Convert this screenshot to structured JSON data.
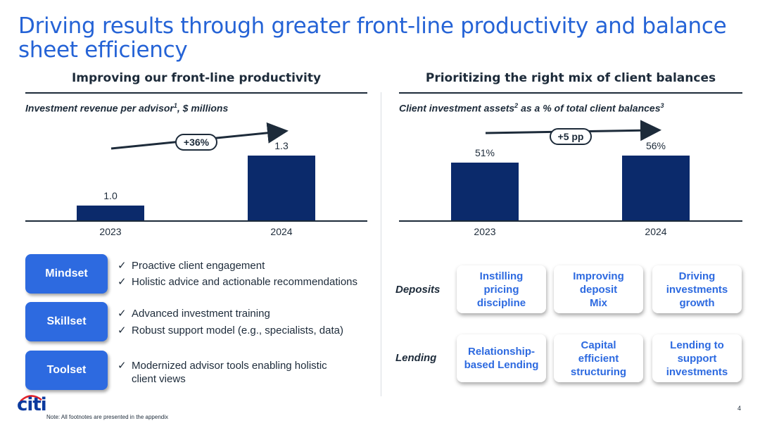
{
  "title": "Driving results through greater front-line productivity and balance sheet efficiency",
  "left": {
    "heading": "Improving our front-line productivity",
    "subtitle": "Investment revenue per advisor",
    "subtitle_sup": "1",
    "subtitle_tail": ", $ millions",
    "change_label": "+36%"
  },
  "right": {
    "heading": "Prioritizing the right mix of client balances",
    "subtitle_a": "Client investment assets",
    "subtitle_sup_a": "2",
    "subtitle_b": " as a % of total client balances",
    "subtitle_sup_b": "3",
    "change_label": "+5 pp"
  },
  "chart_data": [
    {
      "type": "bar",
      "title": "Investment revenue per advisor, $ millions",
      "categories": [
        "2023",
        "2024"
      ],
      "values": [
        1.0,
        1.3
      ],
      "value_labels": [
        "1.0",
        "1.3"
      ],
      "ylim": [
        0,
        1.3
      ],
      "annotation": "+36%"
    },
    {
      "type": "bar",
      "title": "Client investment assets as a % of total client balances",
      "categories": [
        "2023",
        "2024"
      ],
      "values": [
        51,
        56
      ],
      "value_labels": [
        "51%",
        "56%"
      ],
      "ylim": [
        0,
        56
      ],
      "annotation": "+5 pp"
    }
  ],
  "pillars": [
    {
      "label": "Mindset",
      "points": [
        "Proactive client engagement",
        "Holistic advice and actionable recommendations"
      ]
    },
    {
      "label": "Skillset",
      "points": [
        "Advanced investment training",
        "Robust support model (e.g., specialists, data)"
      ]
    },
    {
      "label": "Toolset",
      "points": [
        "Modernized advisor tools enabling holistic client views"
      ]
    }
  ],
  "matrix": {
    "rows": [
      "Deposits",
      "Lending"
    ],
    "deposits": [
      "Instilling pricing discipline",
      "Improving deposit Mix",
      "Driving investments growth"
    ],
    "lending": [
      "Relationship-based Lending",
      "Capital efficient structuring",
      "Lending to support investments"
    ]
  },
  "logo_text": "citi",
  "note": "Note:  All footnotes are presented in the appendix",
  "page_number": "4",
  "colors": {
    "title": "#2563d6",
    "bar": "#0b2a6b",
    "button": "#2d6ae0",
    "text": "#1d2b3a"
  }
}
